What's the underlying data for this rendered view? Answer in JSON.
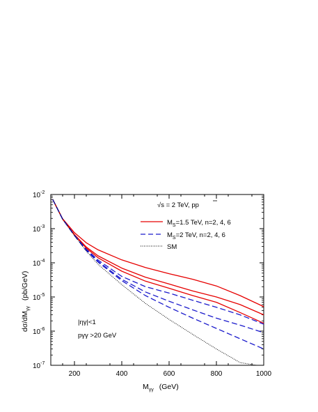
{
  "chart_data": {
    "type": "line",
    "title": "",
    "xlabel_main": "M",
    "xlabel_sub": "γγ",
    "xlabel_unit": "(GeV)",
    "ylabel_main": "dσ/dM",
    "ylabel_sub": "γγ",
    "ylabel_unit": "(pb/GeV)",
    "log_y": true,
    "xlim": [
      100,
      1000
    ],
    "ylim": [
      1e-07,
      0.01
    ],
    "x_ticks": [
      "200",
      "400",
      "600",
      "800",
      "1000"
    ],
    "y_ticks": [
      {
        "base": "10",
        "exp": "-2"
      },
      {
        "base": "10",
        "exp": "-3"
      },
      {
        "base": "10",
        "exp": "-4"
      },
      {
        "base": "10",
        "exp": "-5"
      },
      {
        "base": "10",
        "exp": "-6"
      },
      {
        "base": "10",
        "exp": "-7"
      }
    ],
    "legend": {
      "header": "√s = 2 TeV,  pp",
      "entries": [
        {
          "pre": "M",
          "sub": "S",
          "post": "=1.5 TeV, n=2, 4, 6",
          "color": "#e60000",
          "dash": "solid"
        },
        {
          "pre": "M",
          "sub": "S",
          "post": "=2 TeV, n=2, 4, 6",
          "color": "#1a1acc",
          "dash": "dashed"
        },
        {
          "pre": "",
          "sub": "",
          "post": "SM",
          "color": "#000000",
          "dash": "dotted"
        }
      ]
    },
    "annotations": {
      "eta_cut": "|ηγ|<1",
      "pt_cut": "pγγ >20 GeV"
    },
    "series": [
      {
        "group": "M_S=1.5 TeV",
        "n": 2,
        "color": "#e60000",
        "dash": "solid",
        "x": [
          108,
          150,
          200,
          250,
          300,
          400,
          500,
          600,
          700,
          800,
          900,
          1000
        ],
        "y": [
          0.0072,
          0.00195,
          0.00076,
          0.000385,
          0.00024,
          0.000122,
          7.3e-05,
          4.8e-05,
          3.3e-05,
          2.1e-05,
          1.1e-05,
          5.2e-06
        ]
      },
      {
        "group": "M_S=1.5 TeV",
        "n": 4,
        "color": "#e60000",
        "dash": "solid",
        "x": [
          108,
          150,
          200,
          250,
          300,
          400,
          500,
          600,
          700,
          800,
          900,
          1000
        ],
        "y": [
          0.0072,
          0.0019,
          0.00067,
          0.00029,
          0.00016,
          7e-05,
          3.8e-05,
          2.4e-05,
          1.5e-05,
          1e-05,
          6e-06,
          3e-06
        ]
      },
      {
        "group": "M_S=1.5 TeV",
        "n": 6,
        "color": "#e60000",
        "dash": "solid",
        "x": [
          108,
          150,
          200,
          250,
          300,
          400,
          500,
          600,
          700,
          800,
          900,
          1000
        ],
        "y": [
          0.0072,
          0.0019,
          0.00065,
          0.00027,
          0.00014,
          5.7e-05,
          2.9e-05,
          1.8e-05,
          1.1e-05,
          7e-06,
          3.5e-06,
          1.7e-06
        ]
      },
      {
        "group": "M_S=2 TeV",
        "n": 2,
        "color": "#1a1acc",
        "dash": "dashed",
        "x": [
          108,
          150,
          200,
          250,
          300,
          400,
          500,
          600,
          700,
          800,
          900,
          1000
        ],
        "y": [
          0.0072,
          0.0019,
          0.00064,
          0.00025,
          0.00012,
          4e-05,
          2e-05,
          1.3e-05,
          8e-06,
          5e-06,
          3e-06,
          1.6e-06
        ]
      },
      {
        "group": "M_S=2 TeV",
        "n": 4,
        "color": "#1a1acc",
        "dash": "dashed",
        "x": [
          108,
          150,
          200,
          250,
          300,
          400,
          500,
          600,
          700,
          800,
          900,
          1000
        ],
        "y": [
          0.0072,
          0.0019,
          0.00063,
          0.00024,
          0.00011,
          3.3e-05,
          1.4e-05,
          7.5e-06,
          4.2e-06,
          2.4e-06,
          1.5e-06,
          9e-07
        ]
      },
      {
        "group": "M_S=2 TeV",
        "n": 6,
        "color": "#1a1acc",
        "dash": "dashed",
        "x": [
          108,
          150,
          200,
          250,
          300,
          400,
          500,
          600,
          700,
          800,
          900,
          1000
        ],
        "y": [
          0.0072,
          0.0019,
          0.00063,
          0.00023,
          0.000105,
          3e-05,
          1.1e-05,
          5e-06,
          2.4e-06,
          1.2e-06,
          6e-07,
          3e-07
        ]
      },
      {
        "group": "SM",
        "n": null,
        "color": "#000000",
        "dash": "dotted",
        "x": [
          108,
          150,
          200,
          250,
          300,
          400,
          500,
          600,
          700,
          800,
          900,
          970
        ],
        "y": [
          0.0072,
          0.0019,
          0.00062,
          0.00022,
          9e-05,
          2.3e-05,
          6.5e-06,
          2.2e-06,
          8e-07,
          3e-07,
          1.2e-07,
          1e-07
        ]
      }
    ]
  }
}
